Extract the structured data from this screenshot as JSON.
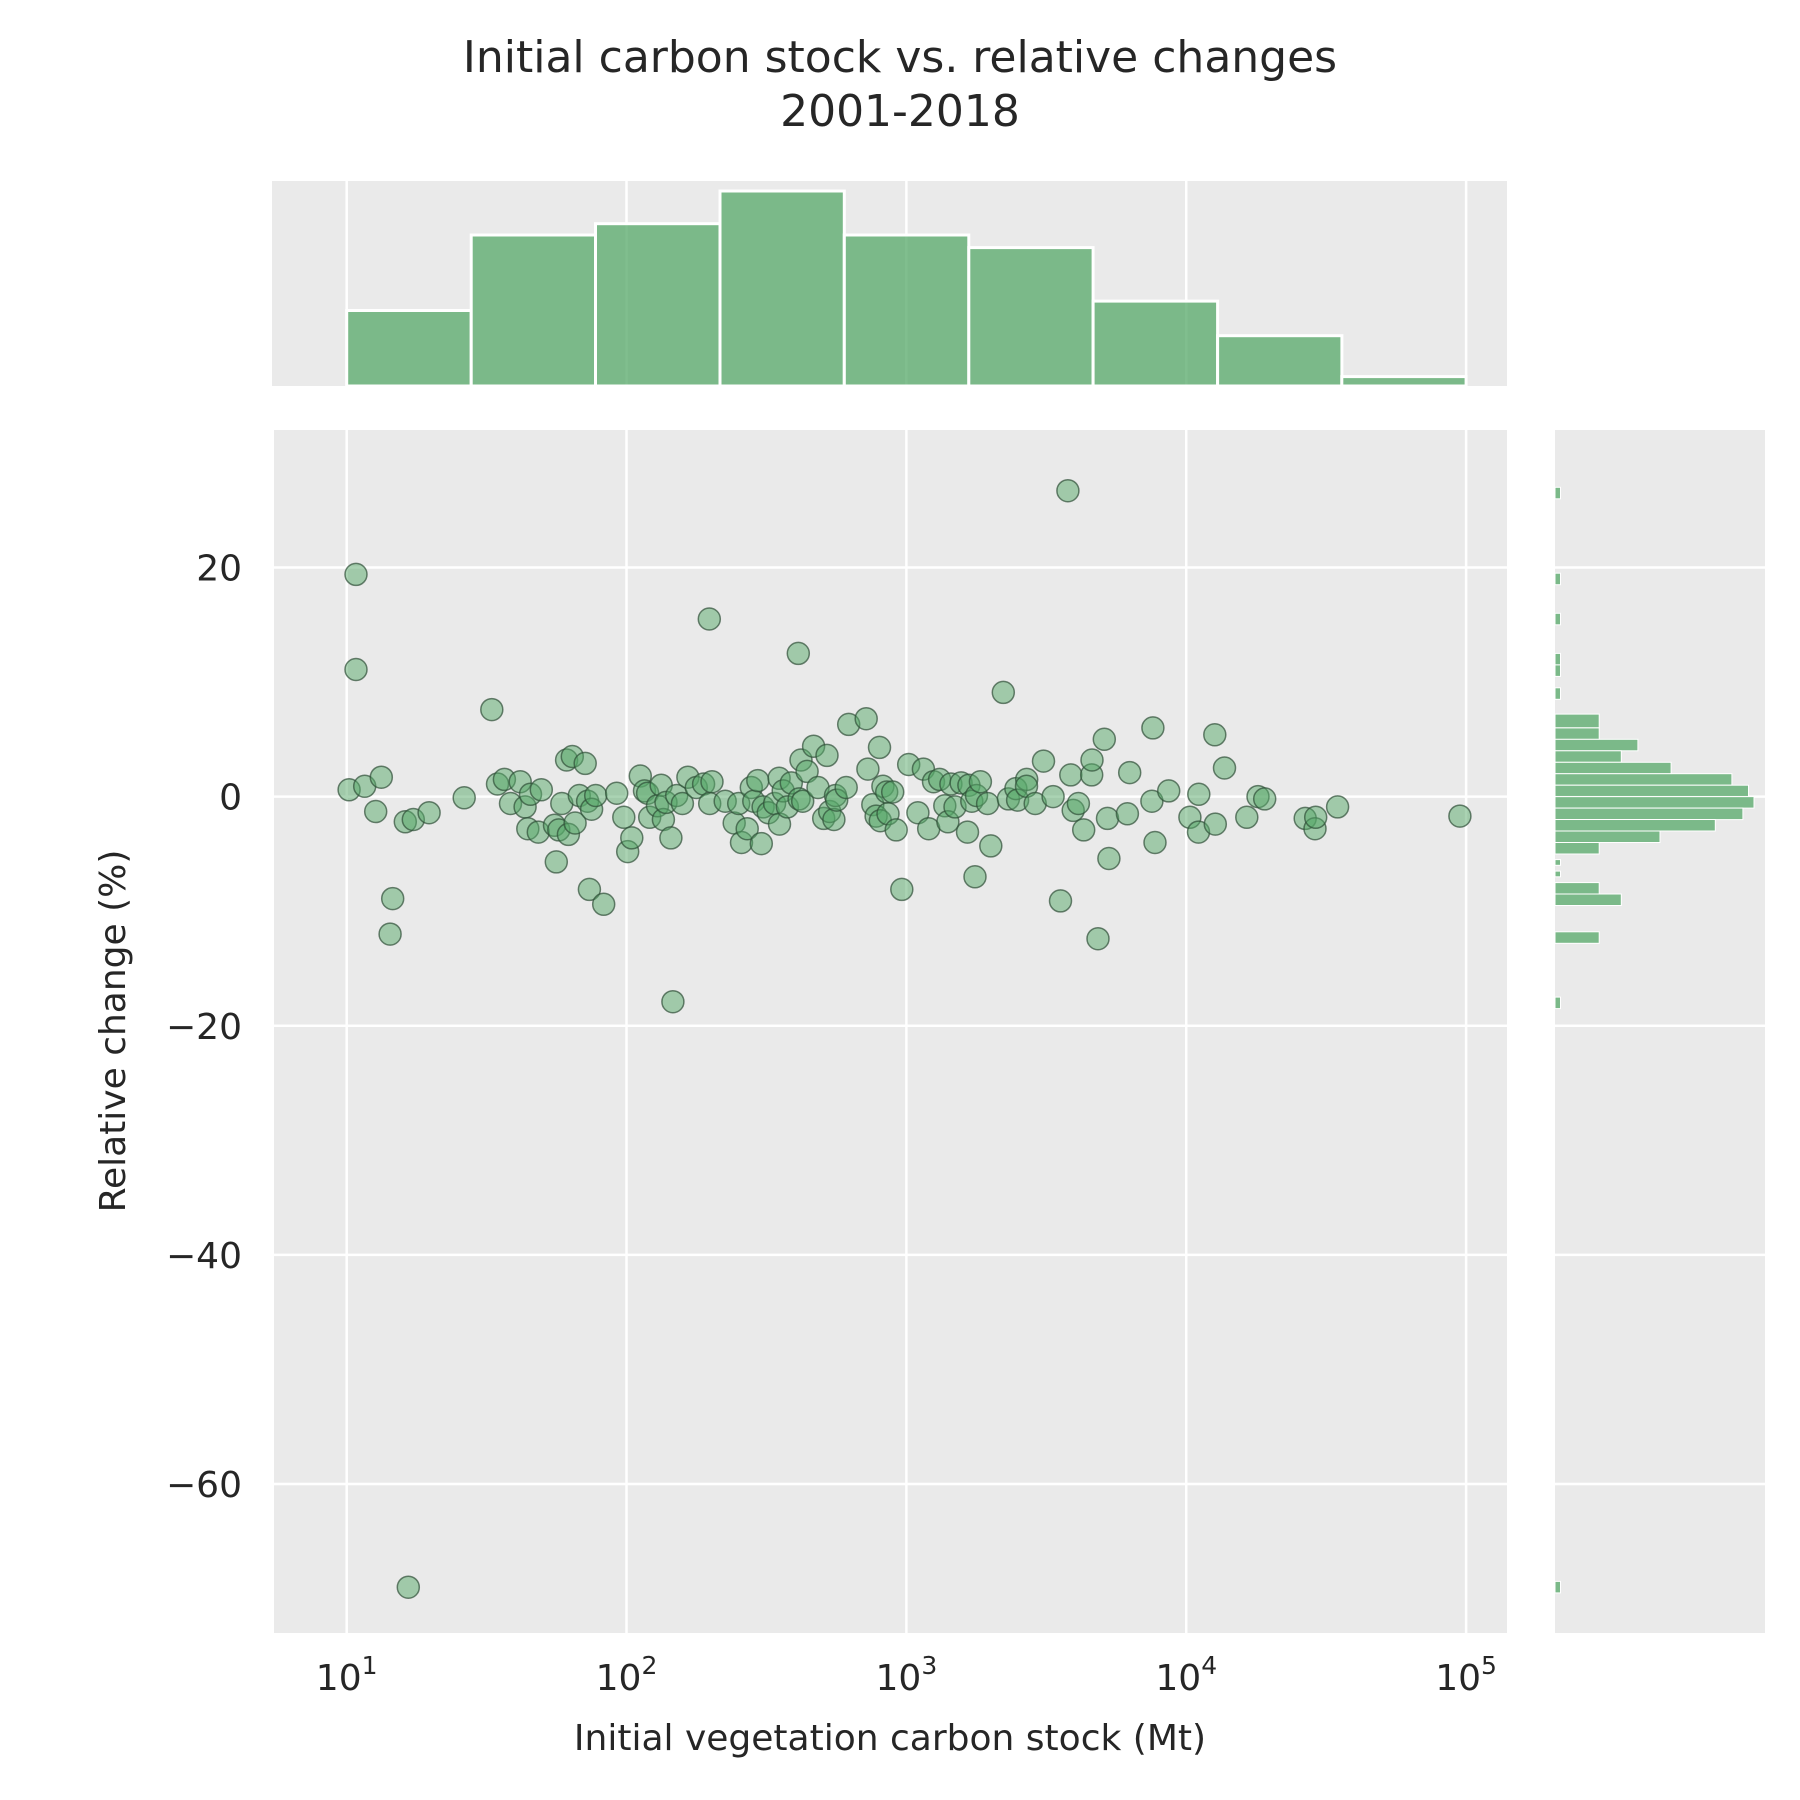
{
  "chart_data": {
    "type": "scatter",
    "title": "Initial carbon stock vs. relative changes",
    "subtitle": "2001-2018",
    "xlabel": "Initial vegetation carbon stock (Mt)",
    "ylabel": "Relative change (%)",
    "x_scale": "log",
    "xlim": [
      5.5,
      140000
    ],
    "ylim": [
      -73,
      32
    ],
    "x_ticks": [
      {
        "value": 10,
        "base": "10",
        "exp": "1"
      },
      {
        "value": 100,
        "base": "10",
        "exp": "2"
      },
      {
        "value": 1000,
        "base": "10",
        "exp": "3"
      },
      {
        "value": 10000,
        "base": "10",
        "exp": "4"
      },
      {
        "value": 100000,
        "base": "10",
        "exp": "5"
      }
    ],
    "y_ticks": [
      {
        "value": 20,
        "label": "20"
      },
      {
        "value": 0,
        "label": "0"
      },
      {
        "value": -20,
        "label": "−20"
      },
      {
        "value": -40,
        "label": "−40"
      },
      {
        "value": -60,
        "label": "−60"
      }
    ],
    "grid": true,
    "colors": {
      "face": "#55a868",
      "edge": "#2f4f38",
      "hist": "#55a868",
      "panel": "#eaeaea"
    },
    "points": [
      [
        10.8,
        19.4
      ],
      [
        10.8,
        11.1
      ],
      [
        10.2,
        0.6
      ],
      [
        11.6,
        0.9
      ],
      [
        12.7,
        -1.3
      ],
      [
        13.3,
        1.7
      ],
      [
        14.3,
        -12.0
      ],
      [
        14.6,
        -8.9
      ],
      [
        16.2,
        -2.2
      ],
      [
        17.3,
        -2.0
      ],
      [
        19.7,
        -1.4
      ],
      [
        16.6,
        -69.0
      ],
      [
        26.3,
        -0.1
      ],
      [
        33.0,
        7.6
      ],
      [
        34.6,
        1.1
      ],
      [
        36.6,
        1.5
      ],
      [
        38.5,
        -0.6
      ],
      [
        41.7,
        1.3
      ],
      [
        43.4,
        -0.9
      ],
      [
        44.4,
        -2.8
      ],
      [
        45.4,
        0.2
      ],
      [
        48.4,
        -3.1
      ],
      [
        49.6,
        0.6
      ],
      [
        55.3,
        -2.5
      ],
      [
        56.1,
        -5.7
      ],
      [
        57.3,
        -2.9
      ],
      [
        58.7,
        -0.6
      ],
      [
        61.1,
        3.2
      ],
      [
        62.0,
        -3.3
      ],
      [
        64.0,
        3.5
      ],
      [
        65.5,
        -2.3
      ],
      [
        67.8,
        0.1
      ],
      [
        71.2,
        2.9
      ],
      [
        72.6,
        -0.4
      ],
      [
        73.7,
        -8.1
      ],
      [
        75.0,
        -1.1
      ],
      [
        77.6,
        0.1
      ],
      [
        82.9,
        -9.4
      ],
      [
        92.2,
        0.3
      ],
      [
        97.8,
        -1.8
      ],
      [
        101.0,
        -4.8
      ],
      [
        104.4,
        -3.6
      ],
      [
        112.0,
        1.8
      ],
      [
        115.9,
        0.5
      ],
      [
        118.9,
        0.3
      ],
      [
        121.0,
        -1.8
      ],
      [
        129.0,
        -0.8
      ],
      [
        133.0,
        1.0
      ],
      [
        135.4,
        -2.0
      ],
      [
        138.4,
        -0.5
      ],
      [
        144.1,
        -3.6
      ],
      [
        146.5,
        -17.9
      ],
      [
        151.1,
        0.1
      ],
      [
        158.4,
        -0.6
      ],
      [
        165.7,
        1.7
      ],
      [
        177.6,
        0.8
      ],
      [
        188.6,
        1.1
      ],
      [
        197.6,
        15.5
      ],
      [
        198.3,
        -0.6
      ],
      [
        202.1,
        1.3
      ],
      [
        225.2,
        -0.4
      ],
      [
        242.5,
        -2.3
      ],
      [
        251.6,
        -0.6
      ],
      [
        257.6,
        -4.0
      ],
      [
        270.0,
        -2.8
      ],
      [
        279.2,
        0.8
      ],
      [
        285.0,
        -0.4
      ],
      [
        294.6,
        1.4
      ],
      [
        303.2,
        -4.1
      ],
      [
        307.7,
        -0.9
      ],
      [
        321.0,
        -1.4
      ],
      [
        338.2,
        -0.6
      ],
      [
        350.8,
        1.6
      ],
      [
        352.0,
        -2.4
      ],
      [
        363.0,
        0.5
      ],
      [
        375.6,
        -0.9
      ],
      [
        388.0,
        1.2
      ],
      [
        410.9,
        12.5
      ],
      [
        413.6,
        -0.2
      ],
      [
        420.1,
        3.2
      ],
      [
        426.1,
        -0.4
      ],
      [
        441.9,
        2.2
      ],
      [
        466.0,
        4.4
      ],
      [
        483.3,
        0.8
      ],
      [
        506.3,
        -1.9
      ],
      [
        520.4,
        3.6
      ],
      [
        532.3,
        -1.3
      ],
      [
        550.6,
        -2.0
      ],
      [
        558.0,
        0.1
      ],
      [
        563.8,
        -0.3
      ],
      [
        609.3,
        0.8
      ],
      [
        622.1,
        6.3
      ],
      [
        718.3,
        6.8
      ],
      [
        728.6,
        2.4
      ],
      [
        758.4,
        -0.7
      ],
      [
        779.7,
        -1.7
      ],
      [
        801.7,
        4.3
      ],
      [
        806.9,
        -2.1
      ],
      [
        824.0,
        0.9
      ],
      [
        850.3,
        0.4
      ],
      [
        859.6,
        -1.5
      ],
      [
        893.4,
        0.4
      ],
      [
        919.9,
        -2.9
      ],
      [
        963.1,
        -8.1
      ],
      [
        1019.0,
        2.8
      ],
      [
        1099.0,
        -1.4
      ],
      [
        1150.6,
        2.4
      ],
      [
        1201.6,
        -2.8
      ],
      [
        1249.5,
        1.3
      ],
      [
        1313.8,
        1.5
      ],
      [
        1371.6,
        -0.8
      ],
      [
        1407.1,
        -2.2
      ],
      [
        1442.0,
        1.1
      ],
      [
        1491.3,
        -0.9
      ],
      [
        1568.2,
        1.2
      ],
      [
        1653.0,
        -3.1
      ],
      [
        1673.2,
        1.0
      ],
      [
        1713.2,
        -0.4
      ],
      [
        1758.3,
        -7.0
      ],
      [
        1781.2,
        0.1
      ],
      [
        1838.9,
        1.3
      ],
      [
        1950.7,
        -0.6
      ],
      [
        2003.1,
        -4.3
      ],
      [
        2220.3,
        9.1
      ],
      [
        2315.1,
        -0.2
      ],
      [
        2463.2,
        0.7
      ],
      [
        2497.6,
        -0.3
      ],
      [
        2691.4,
        1.5
      ],
      [
        2687.4,
        0.9
      ],
      [
        2885.2,
        -0.6
      ],
      [
        3089.9,
        3.1
      ],
      [
        3343.2,
        0.0
      ],
      [
        3553.9,
        -9.1
      ],
      [
        3778.2,
        26.7
      ],
      [
        3867.9,
        1.9
      ],
      [
        3944.2,
        -1.2
      ],
      [
        4116.2,
        -0.6
      ],
      [
        4300.2,
        -2.9
      ],
      [
        4593.9,
        1.9
      ],
      [
        4604.5,
        3.2
      ],
      [
        4839.4,
        -12.4
      ],
      [
        5093.6,
        5.0
      ],
      [
        5229.5,
        -1.9
      ],
      [
        5293.1,
        -5.4
      ],
      [
        6162.2,
        -1.5
      ],
      [
        6279.0,
        2.1
      ],
      [
        7535.6,
        -0.4
      ],
      [
        7598.3,
        6.0
      ],
      [
        7733.3,
        -4.0
      ],
      [
        8657.8,
        0.5
      ],
      [
        10308.0,
        -1.8
      ],
      [
        11092.0,
        0.2
      ],
      [
        11064.0,
        -3.1
      ],
      [
        12645.0,
        5.4
      ],
      [
        12700.0,
        -2.4
      ],
      [
        13694.0,
        2.5
      ],
      [
        16460.0,
        -1.8
      ],
      [
        18048.0,
        0.0
      ],
      [
        19069.0,
        -0.2
      ],
      [
        26617.0,
        -1.9
      ],
      [
        28843.0,
        -2.8
      ],
      [
        29018.0,
        -1.8
      ],
      [
        34747.0,
        -0.9
      ],
      [
        95047.0,
        -1.7
      ]
    ],
    "x_hist": {
      "bin_edges_exp": [
        1.0,
        1.445,
        1.889,
        2.334,
        2.778,
        3.223,
        3.667,
        4.112,
        4.556,
        5.0
      ],
      "counts": [
        12,
        24,
        25.8,
        31,
        24,
        22,
        13.5,
        8,
        1.5
      ]
    },
    "y_hist": {
      "bins": [
        [
          26,
          27,
          1
        ],
        [
          18.5,
          19.5,
          1
        ],
        [
          15,
          16,
          1
        ],
        [
          11.5,
          12.5,
          1
        ],
        [
          10.5,
          11.5,
          1
        ],
        [
          8.5,
          9.5,
          1
        ],
        [
          6,
          7.2,
          8
        ],
        [
          5,
          6,
          8
        ],
        [
          4,
          5,
          15
        ],
        [
          3,
          4,
          12
        ],
        [
          2,
          3,
          21
        ],
        [
          1,
          2,
          32
        ],
        [
          0,
          1,
          35
        ],
        [
          -1,
          0,
          36
        ],
        [
          -2,
          -1,
          34
        ],
        [
          -3,
          -2,
          29
        ],
        [
          -4,
          -3,
          19
        ],
        [
          -5,
          -4,
          8
        ],
        [
          -6,
          -5.5,
          1
        ],
        [
          -7,
          -6.5,
          1
        ],
        [
          -8.5,
          -7.5,
          8
        ],
        [
          -9.5,
          -8.5,
          12
        ],
        [
          -12.8,
          -11.8,
          8
        ],
        [
          -18.5,
          -17.5,
          1
        ],
        [
          -69.5,
          -68.5,
          1
        ]
      ]
    }
  }
}
